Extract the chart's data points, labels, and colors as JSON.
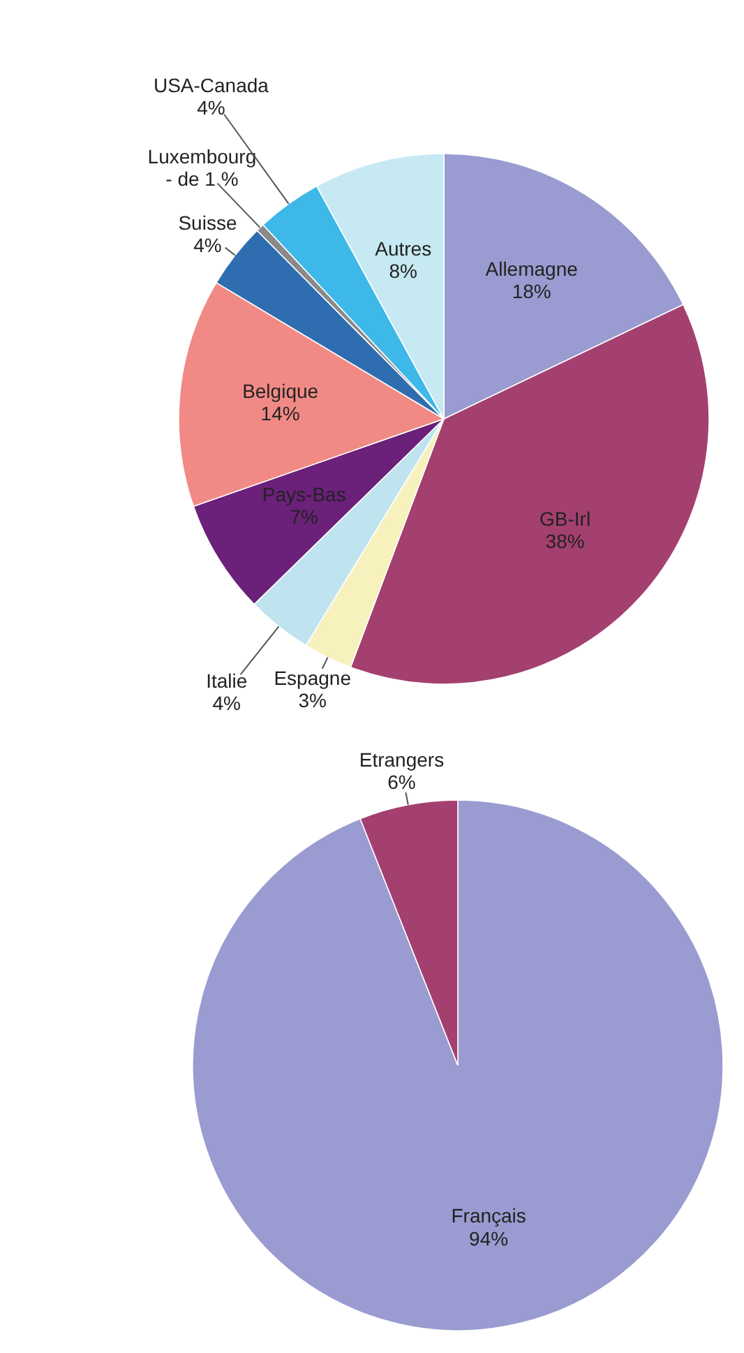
{
  "chart_data": [
    {
      "type": "pie",
      "categories": [
        "Allemagne",
        "GB-Irl",
        "Espagne",
        "Italie",
        "Pays-Bas",
        "Belgique",
        "Suisse",
        "Luxembourg",
        "USA-Canada",
        "Autres"
      ],
      "values": [
        18,
        38,
        3,
        4,
        7,
        14,
        4,
        0.5,
        4,
        8
      ],
      "value_labels": [
        "18%",
        "38%",
        "3%",
        "4%",
        "7%",
        "14%",
        "4%",
        "- de 1 %",
        "4%",
        "8%"
      ],
      "colors": [
        "#9a9bd0",
        "#a3406f",
        "#f6f1bd",
        "#bfe3ef",
        "#6b2079",
        "#f18a85",
        "#2e6db0",
        "#8a8a8a",
        "#3db8e8",
        "#c6e9f3"
      ]
    },
    {
      "type": "pie",
      "categories": [
        "Français",
        "Etrangers"
      ],
      "values": [
        94,
        6
      ],
      "value_labels": [
        "94%",
        "6%"
      ],
      "colors": [
        "#9a9bd0",
        "#a3406f"
      ]
    }
  ]
}
